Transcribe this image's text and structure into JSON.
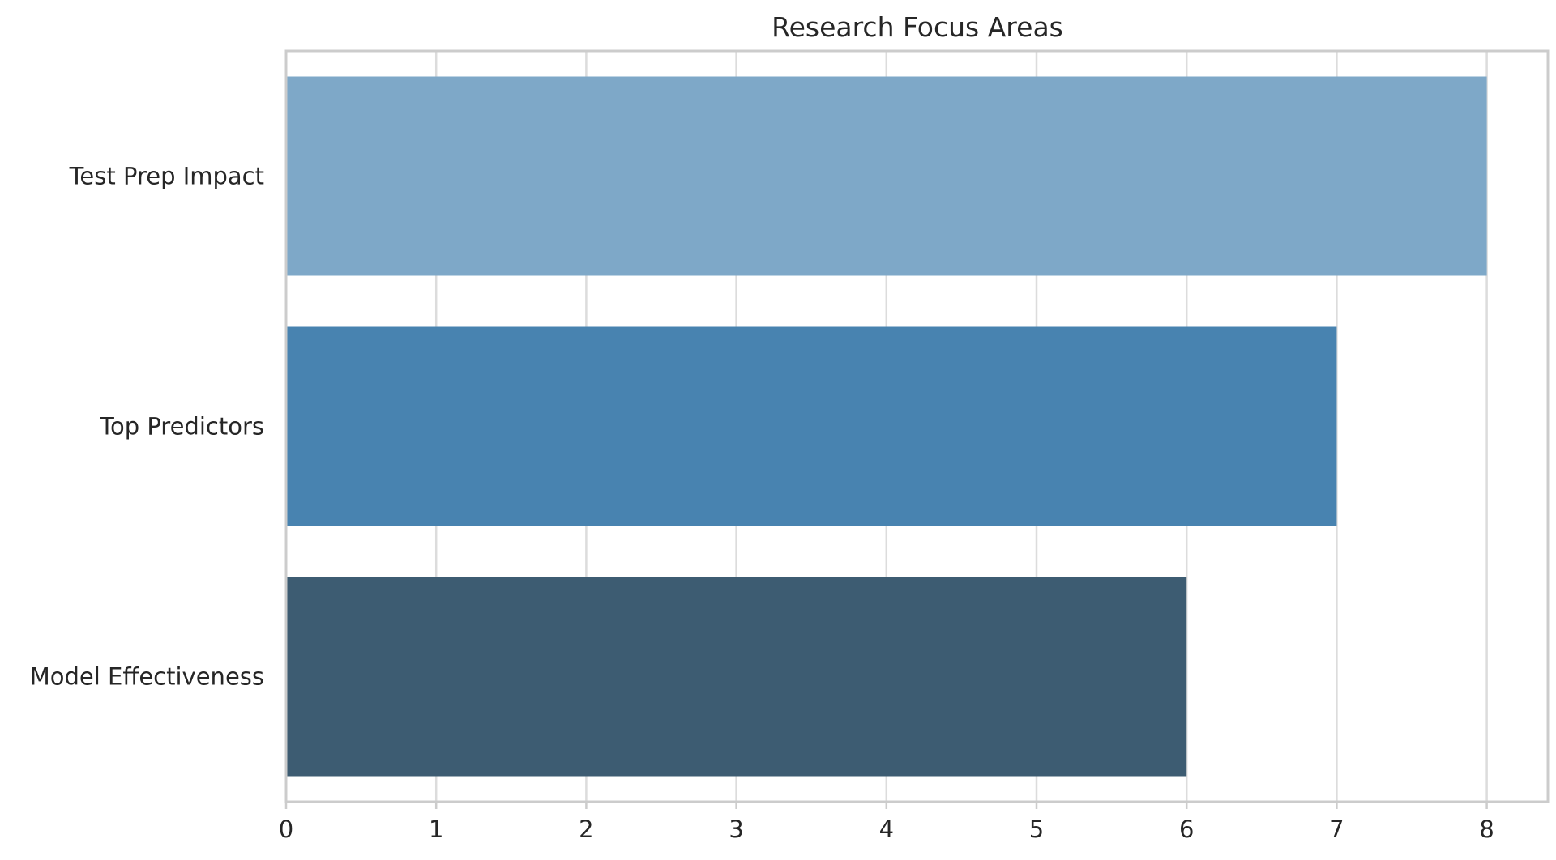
{
  "chart_data": {
    "type": "bar",
    "orientation": "horizontal",
    "title": "Research Focus Areas",
    "xlabel": "",
    "ylabel": "",
    "categories": [
      "Test Prep Impact",
      "Top Predictors",
      "Model Effectiveness"
    ],
    "values": [
      8,
      7,
      6
    ],
    "colors": [
      "#7ea8c8",
      "#4883b0",
      "#3d5c72"
    ],
    "xlim": [
      0,
      8.4
    ],
    "xticks": [
      0,
      1,
      2,
      3,
      4,
      5,
      6,
      7,
      8
    ],
    "grid": "vertical",
    "legend": "none"
  }
}
